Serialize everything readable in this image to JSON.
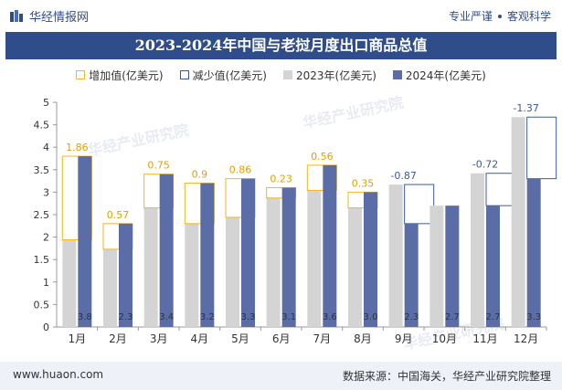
{
  "header": {
    "brand_name": "华经情报网",
    "tagline_left": "专业严谨",
    "tagline_right": "客观科学",
    "title": "2023-2024年中国与老挝月度出口商品总值"
  },
  "legend": {
    "increase": "增加值(亿美元)",
    "decrease": "减少值(亿美元)",
    "y2023": "2023年(亿美元)",
    "y2024": "2024年(亿美元)"
  },
  "watermark": "华经产业研究院",
  "footer": {
    "url": "www.huaon.com",
    "source": "数据来源：中国海关，华经产业研究院整理"
  },
  "colors": {
    "brand": "#2f4d8a",
    "bar_2023": "#d4d4d4",
    "bar_2024": "#5a6da6",
    "increase": "#f2b61e",
    "decrease": "#3a5a9a"
  },
  "chart_data": {
    "type": "bar",
    "title": "2023-2024年中国与老挝月度出口商品总值",
    "categories": [
      "1月",
      "2月",
      "3月",
      "4月",
      "5月",
      "6月",
      "7月",
      "8月",
      "9月",
      "10月",
      "11月",
      "12月"
    ],
    "series": [
      {
        "name": "2023年(亿美元)",
        "values": [
          1.94,
          1.73,
          2.65,
          2.3,
          2.44,
          2.87,
          3.04,
          2.65,
          3.17,
          2.7,
          3.42,
          4.67
        ]
      },
      {
        "name": "2024年(亿美元)",
        "values": [
          3.8,
          2.3,
          3.4,
          3.2,
          3.3,
          3.1,
          3.6,
          3.0,
          2.3,
          2.7,
          2.7,
          3.3
        ]
      }
    ],
    "change_labels": [
      "1.86",
      "0.57",
      "0.75",
      "0.9",
      "0.86",
      "0.23",
      "0.56",
      "0.35",
      "-0.87",
      "",
      "-0.72",
      "-1.37"
    ],
    "value_labels_2024": [
      "3.8",
      "2.3",
      "3.4",
      "3.2",
      "3.3",
      "3.1",
      "3.6",
      "3.0",
      "2.3",
      "2.7",
      "2.7",
      "3.3"
    ],
    "ylim": [
      0,
      5
    ],
    "yticks": [
      "0",
      "0.5",
      "1",
      "1.5",
      "2",
      "2.5",
      "3",
      "3.5",
      "4",
      "4.5",
      "5"
    ],
    "legend_position": "top",
    "grid": false
  }
}
